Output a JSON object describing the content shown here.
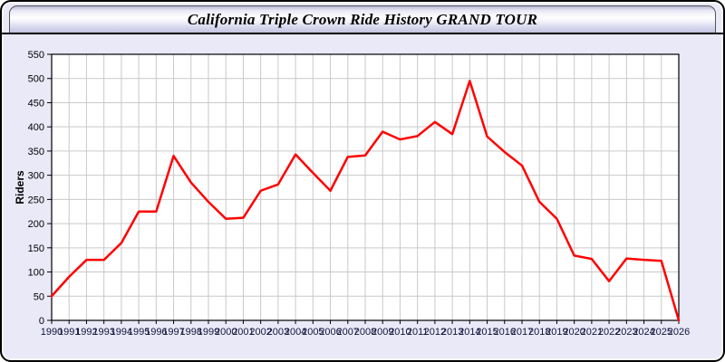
{
  "header": {
    "title": "California Triple Crown Ride History GRAND TOUR"
  },
  "colors": {
    "line": "#ff0000",
    "grid": "#c9c9c9",
    "plot_bg": "#ffffff",
    "page_bg": "#e9e9f8",
    "plot_border": "#000000",
    "y_tick_label": "#000000",
    "x_tick_label": "#14143c"
  },
  "chart_data": {
    "type": "line",
    "title": "California Triple Crown Ride History GRAND TOUR",
    "xlabel": "",
    "ylabel": "Riders",
    "ylim": [
      0,
      550
    ],
    "ytick_step": 50,
    "grid": true,
    "legend_position": "none",
    "x": [
      "1990",
      "1991",
      "1992",
      "1993",
      "1994",
      "1995",
      "1996",
      "1997",
      "1998",
      "1999",
      "2000",
      "2001",
      "2002",
      "2003",
      "2004",
      "2005",
      "2006",
      "2007",
      "2008",
      "2009",
      "2010",
      "2011",
      "2012",
      "2013",
      "2014",
      "2015",
      "2016",
      "2017",
      "2018",
      "2019",
      "2020",
      "2021",
      "2022",
      "2023",
      "2024",
      "2025",
      "2026"
    ],
    "series": [
      {
        "name": "Riders",
        "color": "#ff0000",
        "values": [
          50,
          90,
          125,
          125,
          160,
          225,
          225,
          340,
          285,
          245,
          210,
          212,
          268,
          281,
          343,
          305,
          268,
          338,
          341,
          390,
          374,
          381,
          410,
          385,
          495,
          380,
          348,
          320,
          245,
          210,
          134,
          127,
          81,
          128,
          125,
          123,
          0
        ]
      }
    ]
  }
}
